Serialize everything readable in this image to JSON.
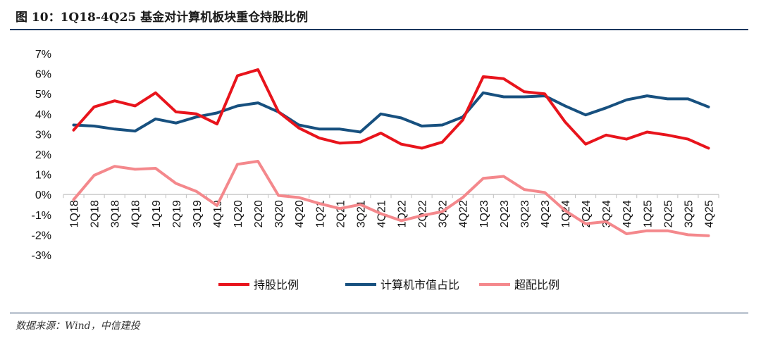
{
  "header": {
    "title": "图 10：1Q18-4Q25 基金对计算机板块重仓持股比例"
  },
  "footer": {
    "source": "数据来源：Wind，中信建投"
  },
  "chart_data": {
    "type": "line",
    "categories": [
      "1Q18",
      "2Q18",
      "3Q18",
      "4Q18",
      "1Q19",
      "2Q19",
      "3Q19",
      "4Q19",
      "1Q20",
      "2Q20",
      "3Q20",
      "4Q20",
      "1Q21",
      "2Q21",
      "3Q21",
      "4Q21",
      "1Q22",
      "2Q22",
      "3Q22",
      "4Q22",
      "1Q23",
      "2Q23",
      "3Q23",
      "4Q23",
      "1Q24",
      "2Q24",
      "3Q24",
      "4Q24",
      "1Q25",
      "2Q25",
      "3Q25",
      "4Q25"
    ],
    "y_ticks": [
      "7%",
      "6%",
      "5%",
      "4%",
      "3%",
      "2%",
      "1%",
      "0%",
      "-1%",
      "-2%",
      "-3%"
    ],
    "ylim": [
      -3,
      7
    ],
    "series": [
      {
        "name": "持股比例",
        "color": "#e8141c",
        "values": [
          3.2,
          4.35,
          4.65,
          4.4,
          5.05,
          4.1,
          4.0,
          3.5,
          5.9,
          6.2,
          4.1,
          3.3,
          2.8,
          2.55,
          2.6,
          3.05,
          2.5,
          2.3,
          2.6,
          3.7,
          5.85,
          5.75,
          5.1,
          5.0,
          3.6,
          2.5,
          2.95,
          2.75,
          3.1,
          2.95,
          2.75,
          2.3
        ]
      },
      {
        "name": "计算机市值占比",
        "color": "#17507f",
        "values": [
          3.45,
          3.4,
          3.25,
          3.15,
          3.75,
          3.55,
          3.85,
          4.05,
          4.4,
          4.55,
          4.1,
          3.45,
          3.25,
          3.25,
          3.1,
          4.0,
          3.8,
          3.4,
          3.45,
          3.85,
          5.05,
          4.85,
          4.85,
          4.9,
          4.4,
          3.95,
          4.3,
          4.7,
          4.9,
          4.75,
          4.75,
          4.35
        ]
      },
      {
        "name": "超配比例",
        "color": "#f4888c",
        "values": [
          -0.25,
          0.95,
          1.4,
          1.25,
          1.3,
          0.55,
          0.15,
          -0.55,
          1.5,
          1.65,
          -0.05,
          -0.15,
          -0.45,
          -0.7,
          -0.5,
          -0.95,
          -1.3,
          -1.05,
          -0.85,
          -0.15,
          0.8,
          0.9,
          0.25,
          0.1,
          -0.8,
          -1.45,
          -1.35,
          -1.95,
          -1.8,
          -1.8,
          -2.0,
          -2.05
        ]
      }
    ],
    "legend_position": "bottom-center",
    "grid": false
  }
}
